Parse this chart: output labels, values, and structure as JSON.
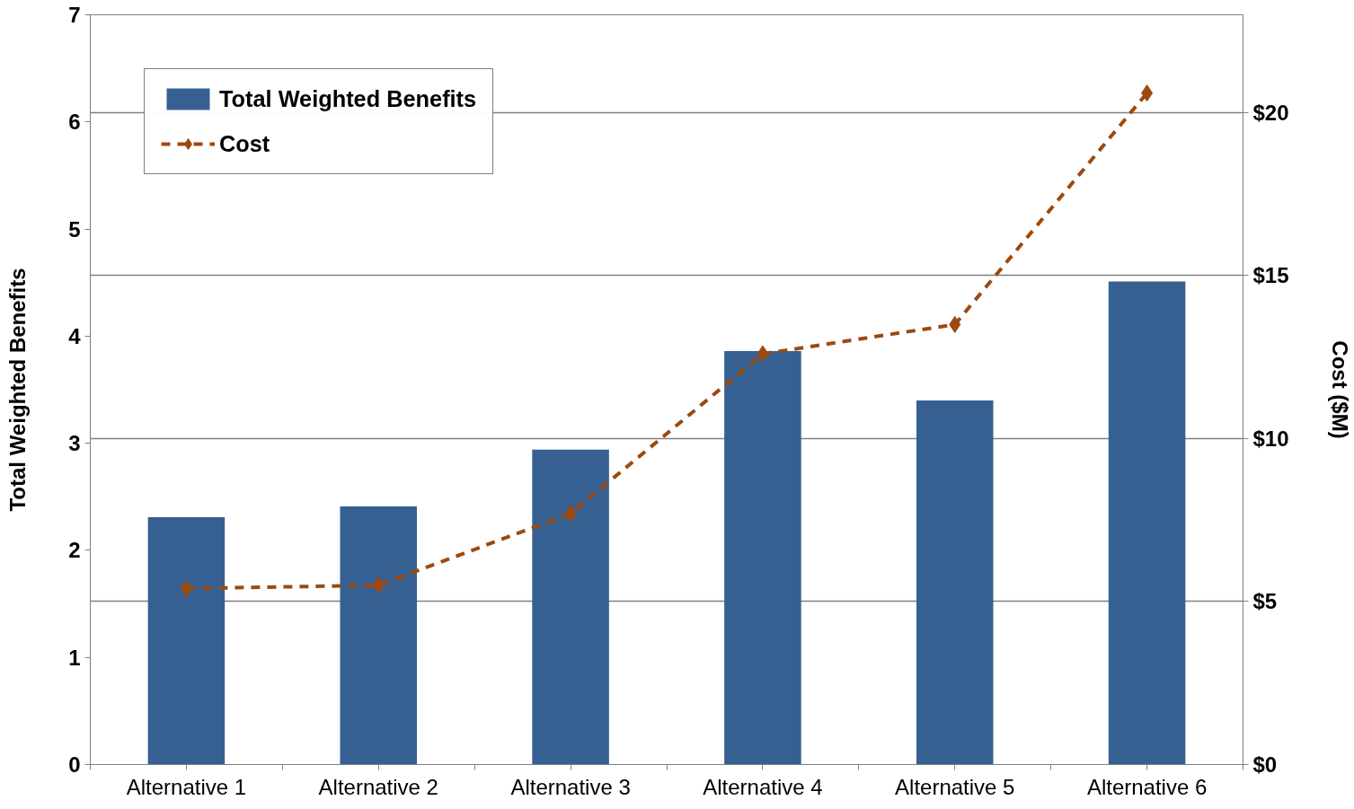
{
  "chart_data": {
    "type": "bar",
    "categories": [
      "Alternative 1",
      "Alternative 2",
      "Alternative 3",
      "Alternative 4",
      "Alternative 5",
      "Alternative 6"
    ],
    "series": [
      {
        "name": "Total Weighted Benefits",
        "color": "#376092",
        "values": [
          2.31,
          2.41,
          2.94,
          3.86,
          3.4,
          4.51
        ]
      },
      {
        "name": "Cost",
        "type": "line",
        "axis": "y2",
        "color": "#9c4a0f",
        "marker": "diamond",
        "line_style": "dashed",
        "values": [
          5.4,
          5.5,
          7.7,
          12.6,
          13.5,
          20.6
        ]
      }
    ],
    "ylabel": "Total Weighted Benefits",
    "y2label": "Cost ($M)",
    "ylim": [
      0,
      7
    ],
    "yticks": [
      0,
      1,
      2,
      3,
      4,
      5,
      6,
      7
    ],
    "y2lim": [
      0,
      23
    ],
    "y2ticks": [
      {
        "value": 0,
        "label": "$0"
      },
      {
        "value": 5,
        "label": "$5"
      },
      {
        "value": 10,
        "label": "$10"
      },
      {
        "value": 15,
        "label": "$15"
      },
      {
        "value": 20,
        "label": "$20"
      }
    ],
    "grid": "y2",
    "legend": "top left"
  }
}
